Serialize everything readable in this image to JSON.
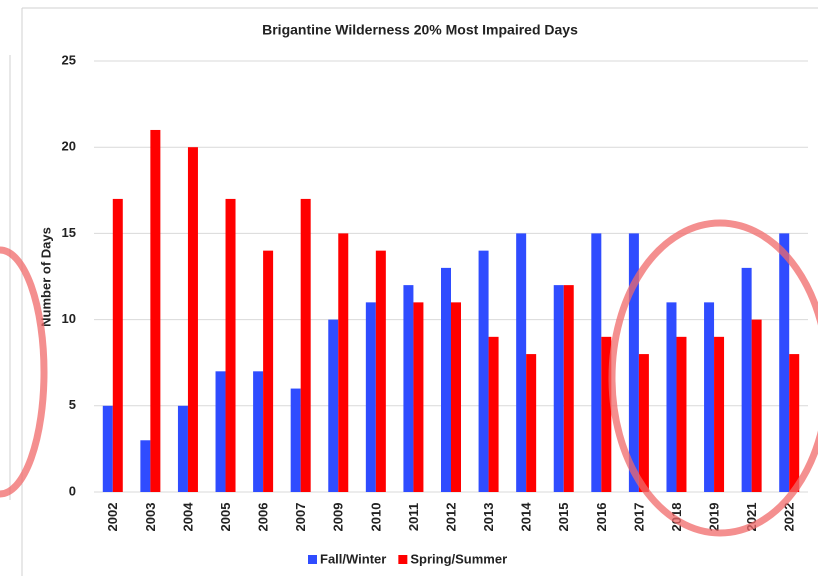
{
  "chart_data": {
    "type": "bar",
    "title": "Brigantine Wilderness 20% Most Impaired Days",
    "y_label": "Number of Days",
    "categories": [
      "2002",
      "2003",
      "2004",
      "2005",
      "2006",
      "2007",
      "2009",
      "2010",
      "2011",
      "2012",
      "2013",
      "2014",
      "2015",
      "2016",
      "2017",
      "2018",
      "2019",
      "2021",
      "2022"
    ],
    "series": [
      {
        "name": "Fall/Winter",
        "color": "#2f4cff",
        "values": [
          5,
          3,
          5,
          7,
          7,
          6,
          10,
          11,
          12,
          13,
          14,
          15,
          12,
          15,
          15,
          11,
          11,
          13,
          15
        ]
      },
      {
        "name": "Spring/Summer",
        "color": "#ff0000",
        "values": [
          17,
          21,
          20,
          17,
          14,
          17,
          15,
          14,
          11,
          11,
          9,
          8,
          12,
          9,
          8,
          9,
          9,
          10,
          8
        ]
      }
    ],
    "ylim": [
      0,
      25
    ],
    "yticks": [
      0,
      5,
      10,
      15,
      20,
      25
    ],
    "grid": true,
    "legend": "bottom"
  }
}
